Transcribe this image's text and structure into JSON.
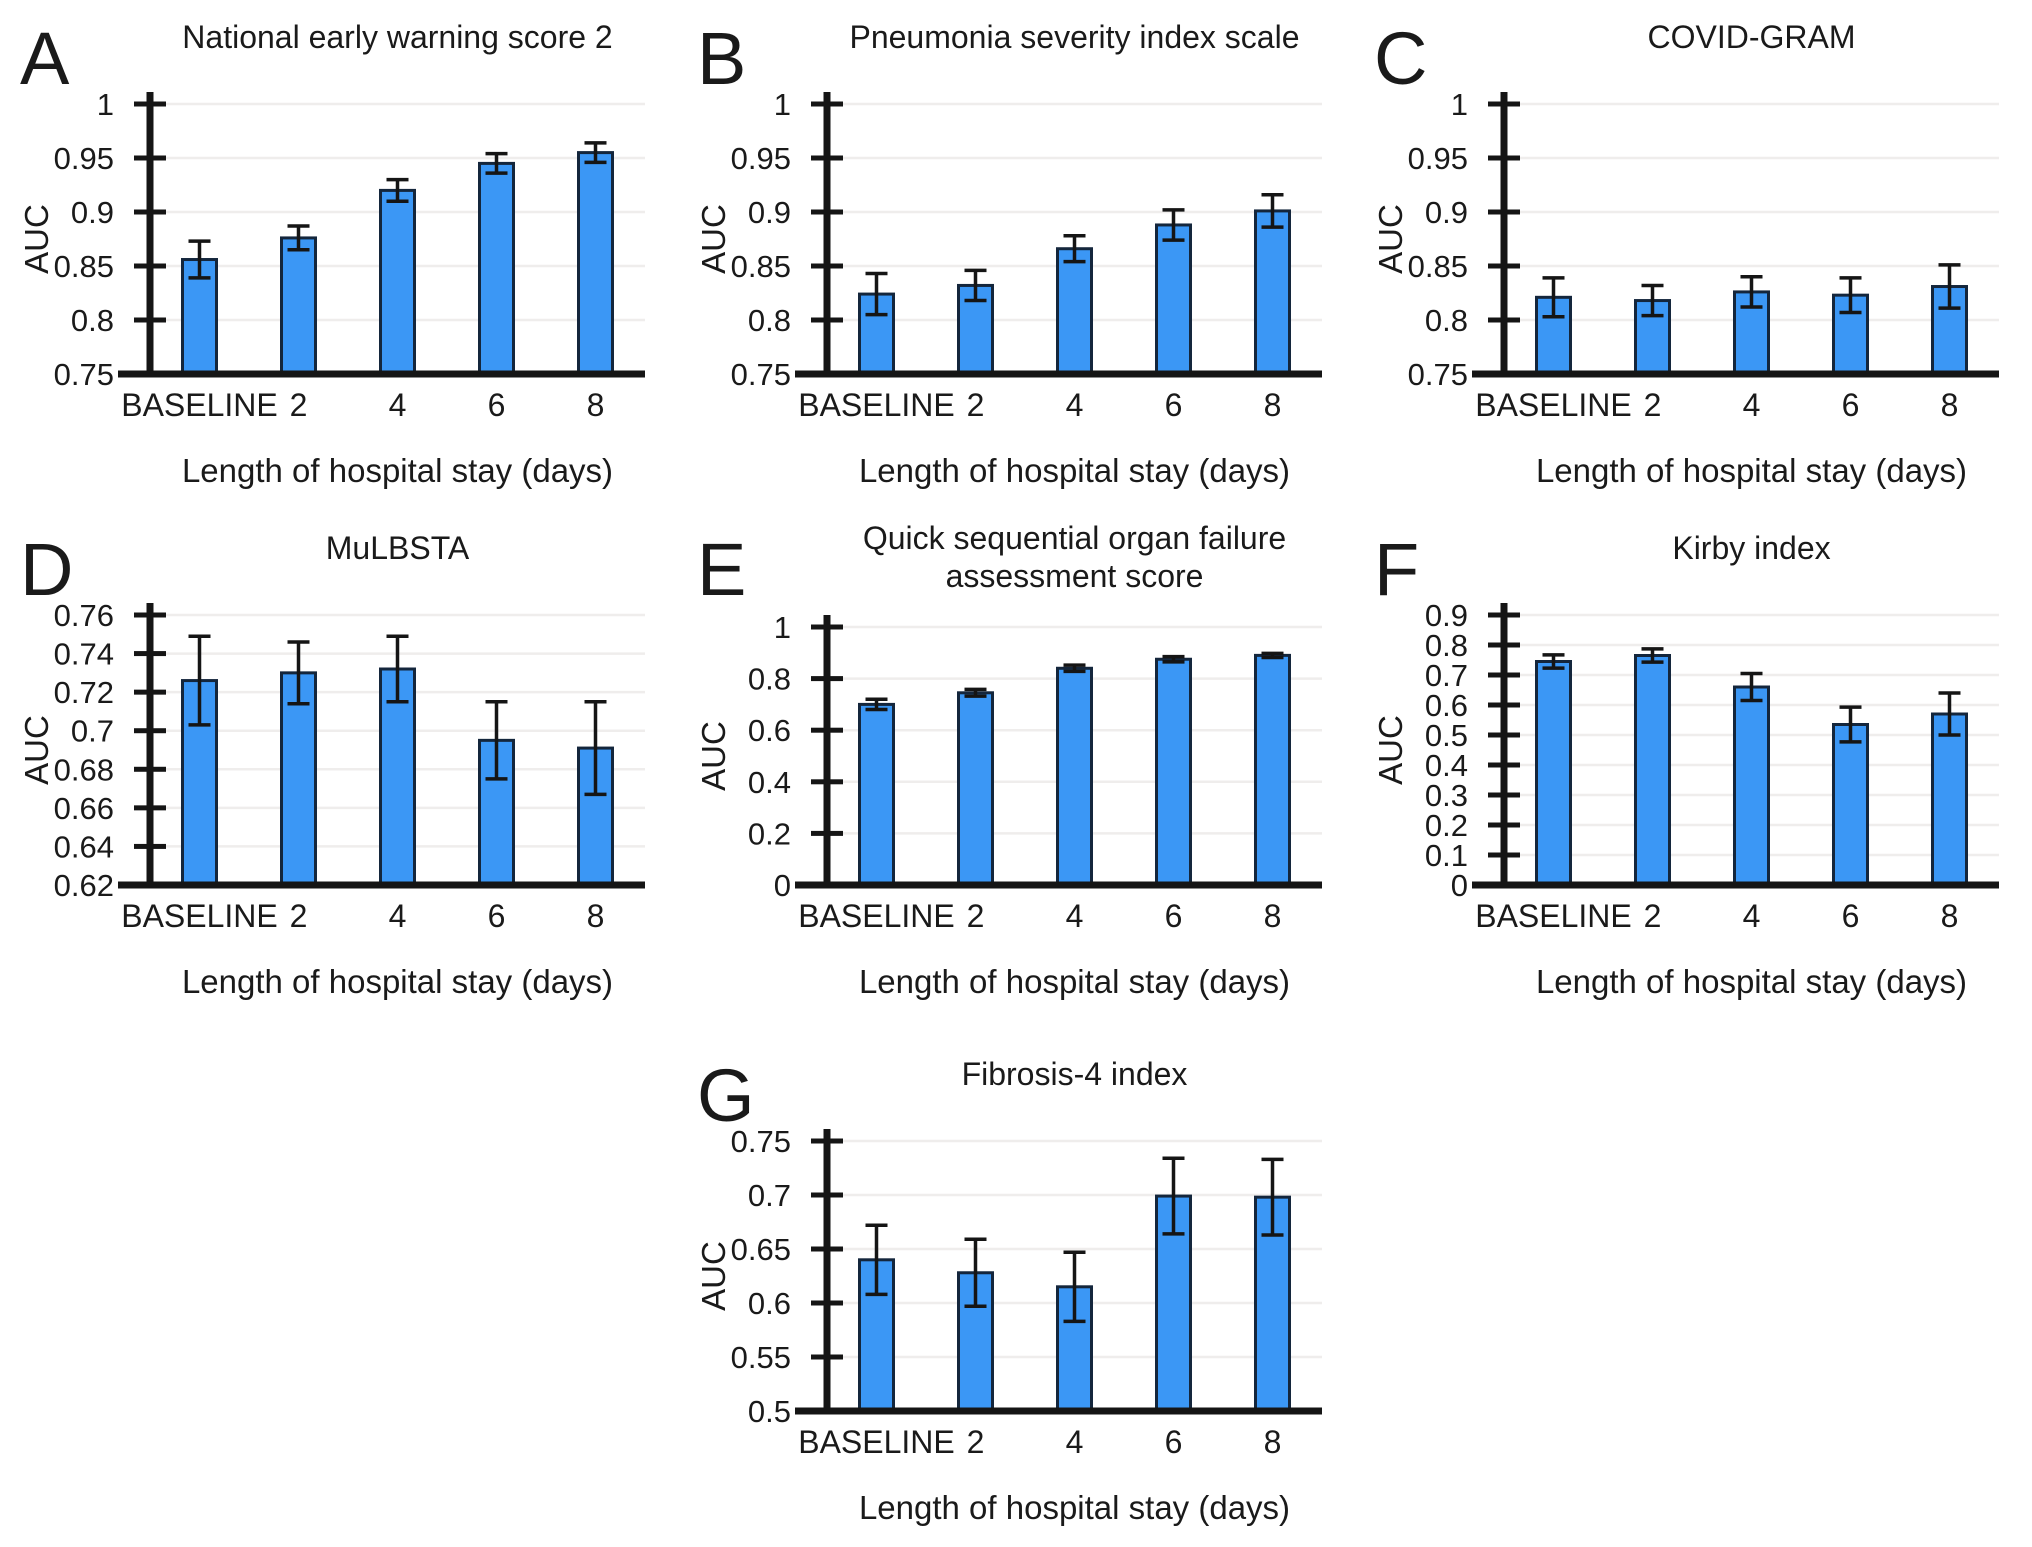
{
  "figure": {
    "description": "Seven bar chart panels of AUC versus length of hospital stay for clinical severity scores",
    "shared_xlabel": "Length of hospital stay (days)",
    "shared_ylabel": "AUC",
    "categories": [
      "BASELINE",
      "2",
      "4",
      "6",
      "8"
    ]
  },
  "colors": {
    "bar_fill": "#3b97f5",
    "bar_stroke": "#14263c",
    "axis": "#151515",
    "grid": "#efedec",
    "text": "#1a1a1a",
    "background": "#ffffff"
  },
  "chart_data": [
    {
      "panel": "A",
      "type": "bar",
      "title": "National early warning score 2",
      "xlabel": "Length of hospital stay (days)",
      "ylabel": "AUC",
      "categories": [
        "BASELINE",
        "2",
        "4",
        "6",
        "8"
      ],
      "values": [
        0.856,
        0.876,
        0.92,
        0.945,
        0.955
      ],
      "errors": [
        0.017,
        0.011,
        0.01,
        0.009,
        0.009
      ],
      "ylim": [
        0.75,
        1.0
      ],
      "ytick_step": 0.05,
      "grid": true,
      "legend": "none"
    },
    {
      "panel": "B",
      "type": "bar",
      "title": "Pneumonia severity index scale",
      "xlabel": "Length of hospital stay (days)",
      "ylabel": "AUC",
      "categories": [
        "BASELINE",
        "2",
        "4",
        "6",
        "8"
      ],
      "values": [
        0.824,
        0.832,
        0.866,
        0.888,
        0.901
      ],
      "errors": [
        0.019,
        0.014,
        0.012,
        0.014,
        0.015
      ],
      "ylim": [
        0.75,
        1.0
      ],
      "ytick_step": 0.05,
      "grid": true,
      "legend": "none"
    },
    {
      "panel": "C",
      "type": "bar",
      "title": "COVID-GRAM",
      "xlabel": "Length of hospital stay (days)",
      "ylabel": "AUC",
      "categories": [
        "BASELINE",
        "2",
        "4",
        "6",
        "8"
      ],
      "values": [
        0.821,
        0.818,
        0.826,
        0.823,
        0.831
      ],
      "errors": [
        0.018,
        0.014,
        0.014,
        0.016,
        0.02
      ],
      "ylim": [
        0.75,
        1.0
      ],
      "ytick_step": 0.05,
      "grid": true,
      "legend": "none"
    },
    {
      "panel": "D",
      "type": "bar",
      "title": "MuLBSTA",
      "xlabel": "Length of hospital stay (days)",
      "ylabel": "AUC",
      "categories": [
        "BASELINE",
        "2",
        "4",
        "6",
        "8"
      ],
      "values": [
        0.726,
        0.73,
        0.732,
        0.695,
        0.691
      ],
      "errors": [
        0.023,
        0.016,
        0.017,
        0.02,
        0.024
      ],
      "ylim": [
        0.62,
        0.76
      ],
      "ytick_step": 0.02,
      "grid": true,
      "legend": "none"
    },
    {
      "panel": "E",
      "type": "bar",
      "title": [
        "Quick sequential organ failure",
        "assessment score"
      ],
      "xlabel": "Length of hospital stay (days)",
      "ylabel": "AUC",
      "categories": [
        "BASELINE",
        "2",
        "4",
        "6",
        "8"
      ],
      "values": [
        0.7,
        0.745,
        0.84,
        0.875,
        0.89
      ],
      "errors": [
        0.02,
        0.013,
        0.012,
        0.01,
        0.008
      ],
      "ylim": [
        0,
        1.0
      ],
      "ytick_step": 0.2,
      "grid": true,
      "legend": "none"
    },
    {
      "panel": "F",
      "type": "bar",
      "title": "Kirby index",
      "xlabel": "Length of hospital stay (days)",
      "ylabel": "AUC",
      "categories": [
        "BASELINE",
        "2",
        "4",
        "6",
        "8"
      ],
      "values": [
        0.745,
        0.765,
        0.66,
        0.535,
        0.57
      ],
      "errors": [
        0.022,
        0.022,
        0.045,
        0.058,
        0.07
      ],
      "ylim": [
        0,
        0.9
      ],
      "ytick_step": 0.1,
      "grid": true,
      "legend": "none"
    },
    {
      "panel": "G",
      "type": "bar",
      "title": "Fibrosis-4 index",
      "xlabel": "Length of hospital stay (days)",
      "ylabel": "AUC",
      "categories": [
        "BASELINE",
        "2",
        "4",
        "6",
        "8"
      ],
      "values": [
        0.64,
        0.628,
        0.615,
        0.699,
        0.698
      ],
      "errors": [
        0.032,
        0.031,
        0.032,
        0.035,
        0.035
      ],
      "ylim": [
        0.5,
        0.75
      ],
      "ytick_step": 0.05,
      "grid": true,
      "legend": "none"
    }
  ]
}
